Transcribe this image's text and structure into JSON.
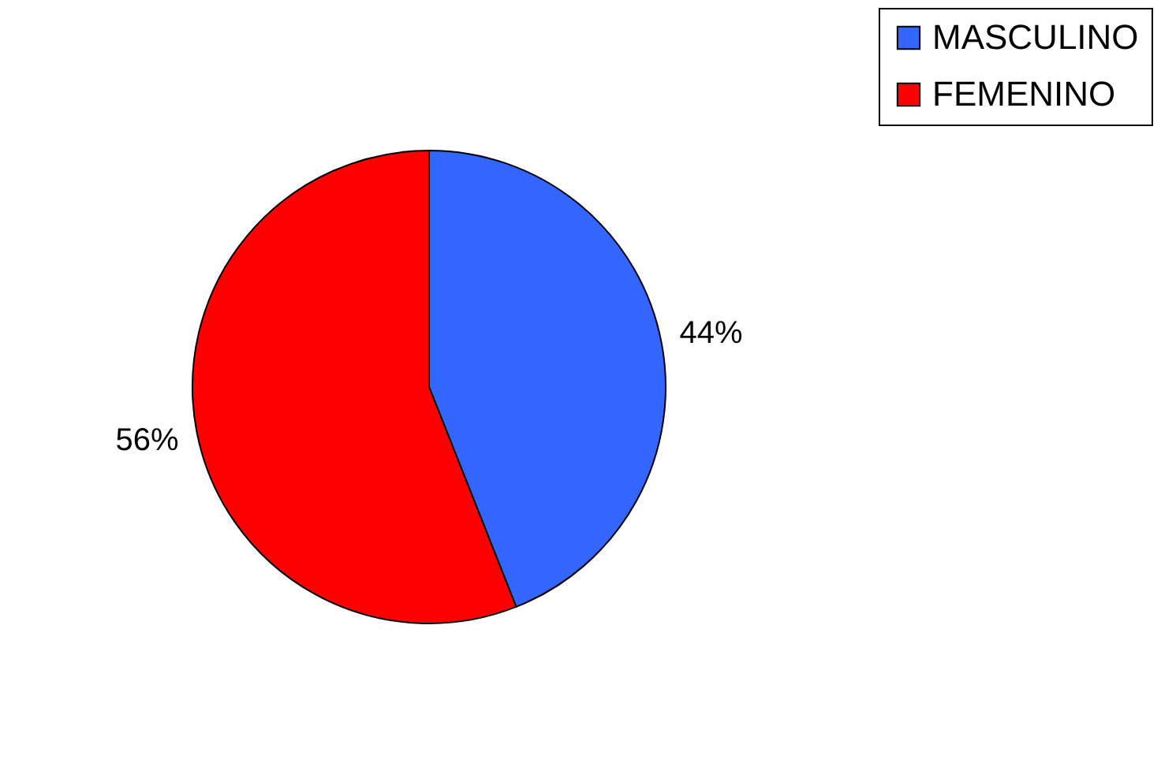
{
  "chart_data": {
    "type": "pie",
    "categories": [
      "MASCULINO",
      "FEMENINO"
    ],
    "values": [
      44,
      56
    ],
    "colors": [
      "#3366ff",
      "#ff0000"
    ],
    "value_labels": [
      "44%",
      "56%"
    ],
    "legend": "right"
  }
}
